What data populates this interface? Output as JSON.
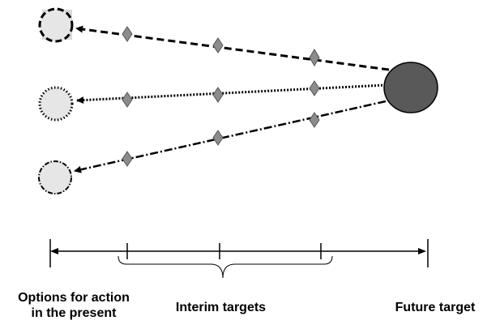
{
  "labels": {
    "options_line1": "Options for action",
    "options_line2": "in the present",
    "interim": "Interim targets",
    "future": "Future target"
  },
  "colors": {
    "line": "#000000",
    "future_target_fill": "#595959",
    "option_fill": "#e6e6e6",
    "option_square_background": "#d8d8d8",
    "interim_marker_fill": "#8c8c8c"
  }
}
